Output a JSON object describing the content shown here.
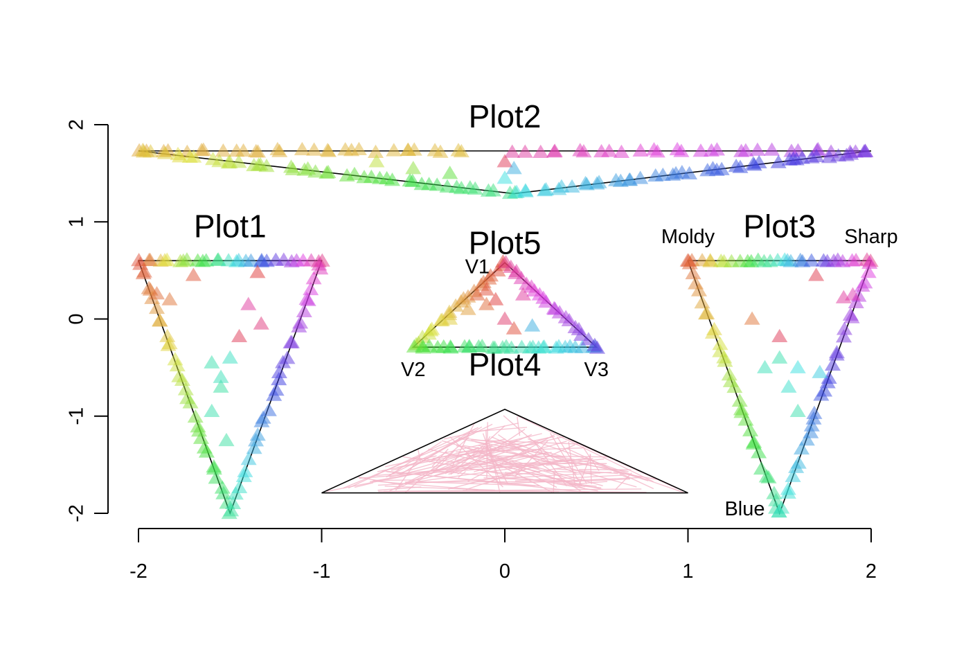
{
  "chart_data": {
    "type": "scatter",
    "xlim": [
      -2,
      2
    ],
    "ylim": [
      -2,
      2
    ],
    "x_ticks": [
      "-2",
      "-1",
      "0",
      "1",
      "2"
    ],
    "y_ticks": [
      "-2",
      "-1",
      "0",
      "1",
      "2"
    ],
    "grid": false,
    "marker": "triangle",
    "marker_opacity": 0.5,
    "panels": [
      {
        "id": "plot1",
        "title": "Plot1",
        "title_pos": [
          -1.5,
          0.84
        ],
        "triangle": [
          [
            -2,
            0.6
          ],
          [
            -1,
            0.6
          ],
          [
            -1.5,
            -2
          ]
        ],
        "vertex_labels": [],
        "edges": [
          {
            "from": [
              -2,
              0.6
            ],
            "to": [
              -1,
              0.6
            ],
            "n": 30,
            "h0": 0.02,
            "h1": 0.92,
            "jitter": 0.01
          },
          {
            "from": [
              -2,
              0.6
            ],
            "to": [
              -1.5,
              -2
            ],
            "n": 32,
            "h0": 0.02,
            "h1": 0.42,
            "jitter": 0.01
          },
          {
            "from": [
              -1.5,
              -2
            ],
            "to": [
              -1,
              0.6
            ],
            "n": 30,
            "h0": 0.43,
            "h1": 0.88,
            "jitter": 0.01
          }
        ],
        "interior": [
          [
            -1.9,
            0.26,
            0.05
          ],
          [
            -1.83,
            0.2,
            0.06
          ],
          [
            -1.7,
            0.45,
            0.03
          ],
          [
            -1.35,
            0.48,
            0.0
          ],
          [
            -1.33,
            -0.05,
            0.93
          ],
          [
            -1.45,
            -0.18,
            0.97
          ],
          [
            -1.5,
            -0.4,
            0.47
          ],
          [
            -1.6,
            -0.45,
            0.45
          ],
          [
            -1.55,
            -0.7,
            0.44
          ],
          [
            -1.6,
            -0.95,
            0.45
          ],
          [
            -1.52,
            -1.25,
            0.44
          ],
          [
            -1.4,
            0.15,
            0.9
          ],
          [
            -1.55,
            -0.6,
            0.46
          ]
        ]
      },
      {
        "id": "plot2",
        "title": "Plot2",
        "title_pos": [
          0,
          1.97
        ],
        "triangle": [
          [
            -2,
            1.73
          ],
          [
            2,
            1.73
          ],
          [
            0.05,
            1.29
          ]
        ],
        "vertex_labels": [],
        "edges": [
          {
            "from": [
              -2,
              1.73
            ],
            "to": [
              -0.2,
              1.73
            ],
            "n": 30,
            "h0": 0.11,
            "h1": 0.13,
            "jitter": 0.015
          },
          {
            "from": [
              0.05,
              1.73
            ],
            "to": [
              2,
              1.73
            ],
            "n": 30,
            "h0": 0.9,
            "h1": 0.75,
            "jitter": 0.015
          },
          {
            "from": [
              -2,
              1.73
            ],
            "to": [
              0.05,
              1.29
            ],
            "n": 45,
            "h0": 0.13,
            "h1": 0.42,
            "jitter": 0.015
          },
          {
            "from": [
              0.05,
              1.29
            ],
            "to": [
              2,
              1.73
            ],
            "n": 45,
            "h0": 0.5,
            "h1": 0.73,
            "jitter": 0.015
          }
        ],
        "interior": [
          [
            0.0,
            1.62,
            0.97
          ],
          [
            0.05,
            1.55,
            0.55
          ],
          [
            -0.3,
            1.5,
            0.3
          ],
          [
            -0.7,
            1.62,
            0.2
          ],
          [
            -0.5,
            1.55,
            0.25
          ],
          [
            0.0,
            1.45,
            0.5
          ]
        ]
      },
      {
        "id": "plot3",
        "title": "Plot3",
        "title_pos": [
          1.5,
          0.84
        ],
        "triangle": [
          [
            1,
            0.6
          ],
          [
            2,
            0.6
          ],
          [
            1.5,
            -2
          ]
        ],
        "vertex_labels": [
          {
            "text": "Moldy",
            "pos": [
              1,
              0.78
            ]
          },
          {
            "text": "Sharp",
            "pos": [
              2,
              0.78
            ]
          },
          {
            "text": "Blue",
            "pos": [
              1.31,
              -2.02
            ]
          }
        ],
        "edges": [
          {
            "from": [
              1,
              0.6
            ],
            "to": [
              2,
              0.6
            ],
            "n": 30,
            "h0": 0.03,
            "h1": 0.93,
            "jitter": 0.01
          },
          {
            "from": [
              1,
              0.6
            ],
            "to": [
              1.5,
              -2
            ],
            "n": 32,
            "h0": 0.04,
            "h1": 0.45,
            "jitter": 0.01
          },
          {
            "from": [
              1.5,
              -2
            ],
            "to": [
              2,
              0.6
            ],
            "n": 30,
            "h0": 0.46,
            "h1": 0.85,
            "jitter": 0.01
          }
        ],
        "interior": [
          [
            1.35,
            0.0,
            0.06
          ],
          [
            1.5,
            -0.18,
            0.97
          ],
          [
            1.5,
            -0.4,
            0.45
          ],
          [
            1.6,
            -0.5,
            0.5
          ],
          [
            1.55,
            -0.7,
            0.48
          ],
          [
            1.6,
            -0.95,
            0.45
          ],
          [
            1.9,
            0.25,
            0.88
          ],
          [
            1.85,
            0.22,
            0.9
          ],
          [
            1.7,
            0.45,
            0.98
          ],
          [
            1.42,
            -0.5,
            0.46
          ],
          [
            1.72,
            -0.55,
            0.52
          ]
        ]
      },
      {
        "id": "plot4",
        "title": "Plot4",
        "title_pos": [
          0,
          -0.58
        ],
        "triangle": [
          [
            -1,
            -1.79
          ],
          [
            1,
            -1.79
          ],
          [
            0,
            -0.93
          ]
        ],
        "vertex_labels": [],
        "segment_color": "#f4b6c8",
        "segment_count": 130
      },
      {
        "id": "plot5",
        "title": "Plot5",
        "title_pos": [
          0,
          0.67
        ],
        "triangle": [
          [
            0,
            0.58
          ],
          [
            -0.5,
            -0.29
          ],
          [
            0.5,
            -0.29
          ]
        ],
        "vertex_labels": [
          {
            "text": "V1",
            "pos": [
              -0.15,
              0.47
            ]
          },
          {
            "text": "V2",
            "pos": [
              -0.5,
              -0.59
            ]
          },
          {
            "text": "V3",
            "pos": [
              0.5,
              -0.59
            ]
          }
        ],
        "edges": [
          {
            "from": [
              0,
              0.58
            ],
            "to": [
              -0.5,
              -0.29
            ],
            "n": 22,
            "h0": 0.0,
            "h1": 0.22,
            "jitter": 0.01
          },
          {
            "from": [
              -0.5,
              -0.29
            ],
            "to": [
              0.5,
              -0.29
            ],
            "n": 32,
            "h0": 0.3,
            "h1": 0.56,
            "jitter": 0.01
          },
          {
            "from": [
              0,
              0.58
            ],
            "to": [
              0.5,
              -0.29
            ],
            "n": 22,
            "h0": 0.92,
            "h1": 0.7,
            "jitter": 0.01
          }
        ],
        "interior": [
          [
            -0.1,
            0.3,
            0.02
          ],
          [
            -0.05,
            0.2,
            0.0
          ],
          [
            -0.1,
            0.15,
            0.05
          ],
          [
            0.0,
            0.0,
            0.95
          ],
          [
            0.15,
            -0.07,
            0.55
          ],
          [
            -0.2,
            0.1,
            0.1
          ],
          [
            -0.15,
            0.25,
            0.04
          ],
          [
            0.1,
            0.25,
            0.9
          ],
          [
            -0.3,
            0.0,
            0.15
          ],
          [
            0.05,
            -0.1,
            0.02
          ]
        ]
      }
    ]
  }
}
